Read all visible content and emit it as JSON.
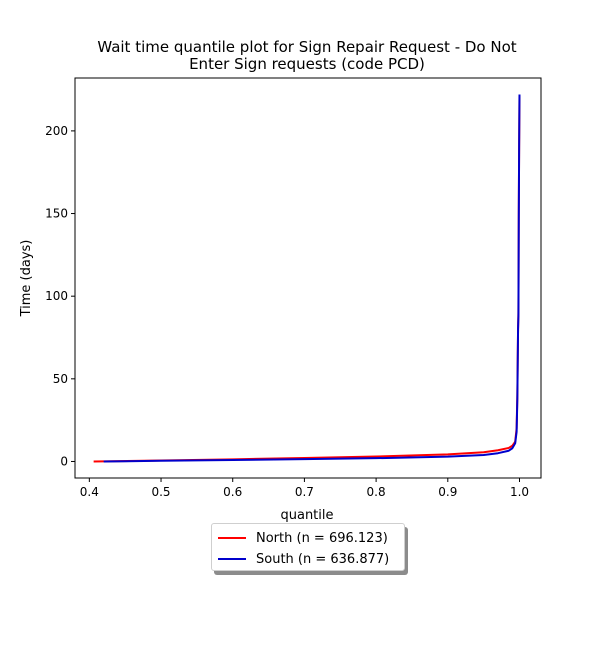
{
  "chart_data": {
    "type": "line",
    "title": "Wait time quantile plot for Sign Repair Request - Do Not\nEnter Sign  requests (code PCD)",
    "xlabel": "quantile",
    "ylabel": "Time (days)",
    "xlim": [
      0.38,
      1.03
    ],
    "ylim": [
      -10,
      232
    ],
    "xticks": [
      0.4,
      0.5,
      0.6,
      0.7,
      0.8,
      0.9,
      1.0
    ],
    "xtick_labels": [
      "0.4",
      "0.5",
      "0.6",
      "0.7",
      "0.8",
      "0.9",
      "1.0"
    ],
    "yticks": [
      0,
      50,
      100,
      150,
      200
    ],
    "ytick_labels": [
      "0",
      "50",
      "100",
      "150",
      "200"
    ],
    "grid": false,
    "legend_position": "below-center",
    "series": [
      {
        "name": "North (n = 696.123)",
        "color": "#ff0000",
        "x": [
          0.406,
          0.5,
          0.6,
          0.7,
          0.8,
          0.9,
          0.95,
          0.97,
          0.985,
          0.99,
          0.994,
          0.996,
          0.997,
          0.998,
          0.9985,
          0.999,
          0.9995,
          1.0
        ],
        "y": [
          0,
          0.6,
          1.3,
          2.1,
          3.0,
          4.3,
          5.6,
          6.8,
          8.2,
          9.5,
          12,
          20,
          40,
          80,
          90,
          150,
          190,
          221
        ]
      },
      {
        "name": "South (n = 636.877)",
        "color": "#0000cc",
        "x": [
          0.42,
          0.5,
          0.6,
          0.7,
          0.8,
          0.9,
          0.95,
          0.97,
          0.985,
          0.99,
          0.994,
          0.996,
          0.997,
          0.998,
          0.9985,
          0.999,
          0.9995,
          1.0
        ],
        "y": [
          0,
          0.4,
          0.9,
          1.4,
          2.0,
          2.9,
          3.9,
          5.0,
          6.5,
          8.0,
          11,
          18,
          38,
          80,
          88,
          148,
          190,
          222
        ]
      }
    ]
  }
}
